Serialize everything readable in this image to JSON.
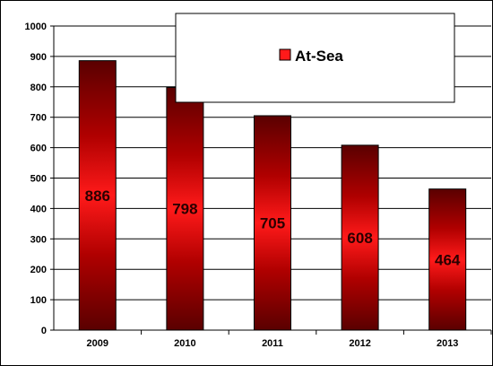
{
  "chart_data": {
    "type": "bar",
    "categories": [
      "2009",
      "2010",
      "2011",
      "2012",
      "2013"
    ],
    "series": [
      {
        "name": "At-Sea",
        "values": [
          886,
          798,
          705,
          608,
          464
        ]
      }
    ],
    "data_labels": [
      "886",
      "798",
      "705",
      "608",
      "464"
    ],
    "y_ticks": [
      "0",
      "100",
      "200",
      "300",
      "400",
      "500",
      "600",
      "700",
      "800",
      "900",
      "1000"
    ],
    "ylim": [
      0,
      1000
    ],
    "title": "",
    "xlabel": "",
    "ylabel": "",
    "grid": true,
    "legend_position": "top-right",
    "legend_marker_color": "#ff1a1a",
    "colors": {
      "bar_light": "#ff1a1a",
      "bar_dark": "#5a0000",
      "axis": "#000000",
      "grid": "#000000"
    }
  }
}
